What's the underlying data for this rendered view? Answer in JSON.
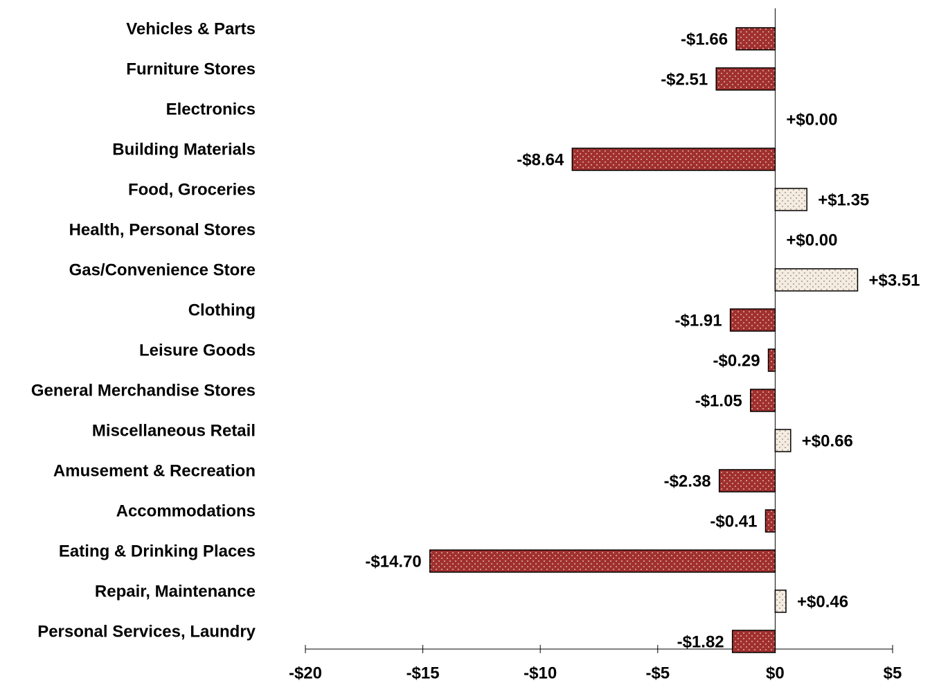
{
  "chart_data": {
    "type": "bar",
    "orientation": "horizontal",
    "categories": [
      "Vehicles & Parts",
      "Furniture Stores",
      "Electronics",
      "Building Materials",
      "Food, Groceries",
      "Health, Personal Stores",
      "Gas/Convenience Store",
      "Clothing",
      "Leisure Goods",
      "General Merchandise Stores",
      "Miscellaneous Retail",
      "Amusement & Recreation",
      "Accommodations",
      "Eating & Drinking Places",
      "Repair, Maintenance",
      "Personal Services, Laundry"
    ],
    "values": [
      -1.66,
      -2.51,
      0.0,
      -8.64,
      1.35,
      0.0,
      3.51,
      -1.91,
      -0.29,
      -1.05,
      0.66,
      -2.38,
      -0.41,
      -14.7,
      0.46,
      -1.82
    ],
    "value_labels": [
      "-$1.66",
      "-$2.51",
      "+$0.00",
      "-$8.64",
      "+$1.35",
      "+$0.00",
      "+$3.51",
      "-$1.91",
      "-$0.29",
      "-$1.05",
      "+$0.66",
      "-$2.38",
      "-$0.41",
      "-$14.70",
      "+$0.46",
      "-$1.82"
    ],
    "negative_color": "#a0302e",
    "positive_color": "#f3ece1",
    "xlim": [
      -20,
      5
    ],
    "xticks": [
      {
        "value": -20,
        "label": "-$20"
      },
      {
        "value": -15,
        "label": "-$15"
      },
      {
        "value": -10,
        "label": "-$10"
      },
      {
        "value": -5,
        "label": "-$5"
      },
      {
        "value": 0,
        "label": "$0"
      },
      {
        "value": 5,
        "label": "$5"
      }
    ]
  }
}
